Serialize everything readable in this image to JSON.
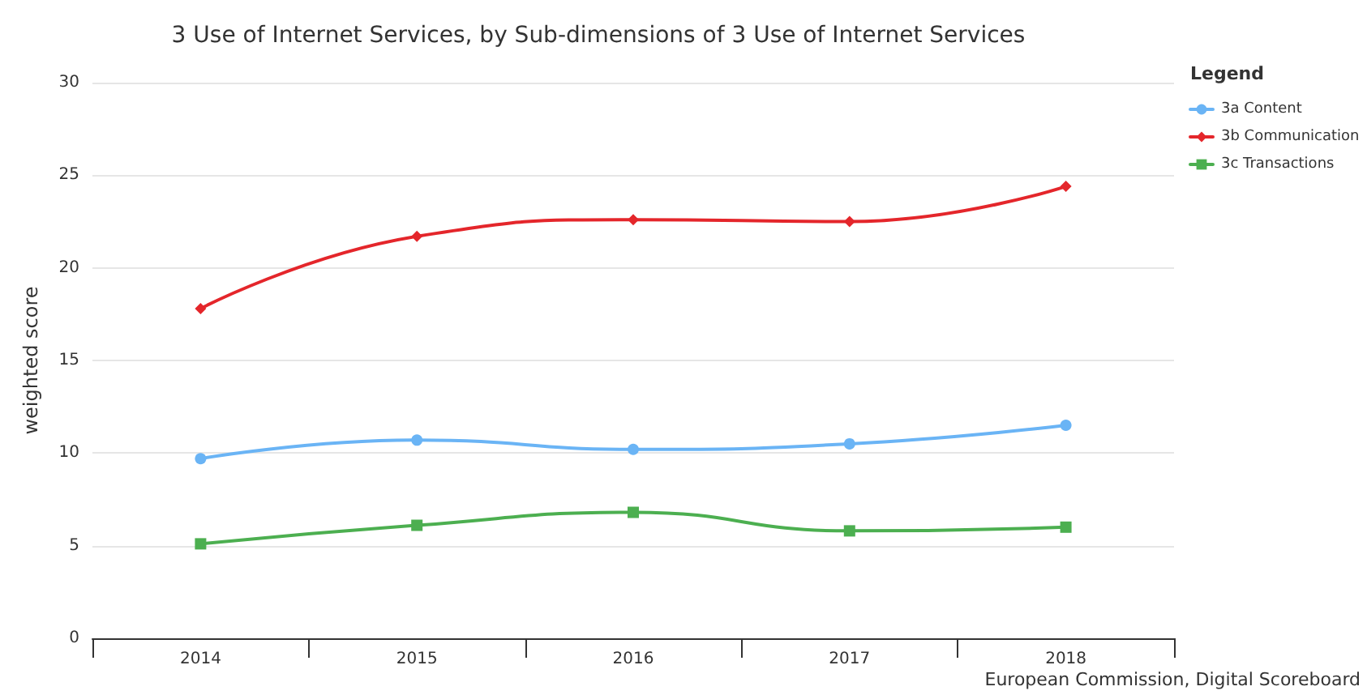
{
  "chart_data": {
    "type": "line",
    "title": "3 Use of Internet Services, by Sub-dimensions of 3 Use of Internet Services",
    "ylabel": "weighted score",
    "legend_title": "Legend",
    "annotations": [
      "European Commission, Digital Scoreboard"
    ],
    "categories": [
      "2014",
      "2015",
      "2016",
      "2017",
      "2018"
    ],
    "series": [
      {
        "name": "3a Content",
        "color": "#6ab4f5",
        "marker": "circle",
        "values": [
          9.7,
          10.7,
          10.2,
          10.5,
          11.5
        ]
      },
      {
        "name": "3b Communication",
        "color": "#e4262b",
        "marker": "diamond",
        "values": [
          17.8,
          21.7,
          22.6,
          22.5,
          24.4
        ]
      },
      {
        "name": "3c Transactions",
        "color": "#4caf50",
        "marker": "square",
        "values": [
          5.1,
          6.1,
          6.8,
          5.8,
          6.0
        ]
      }
    ],
    "ylim": [
      0,
      30
    ],
    "yticks": [
      0,
      5,
      10,
      15,
      20,
      25,
      30
    ],
    "grid": "y",
    "legend": "top right",
    "line_style": "solid"
  }
}
